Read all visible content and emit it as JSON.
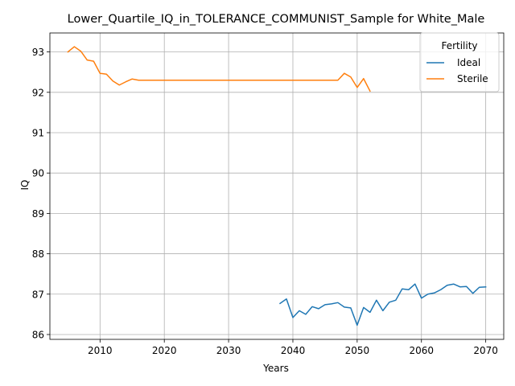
{
  "chart_data": {
    "type": "line",
    "title": "Lower_Quartile_IQ_in_TOLERANCE_COMMUNIST_Sample for White_Male",
    "xlabel": "Years",
    "ylabel": "IQ",
    "xlim": [
      2002.2,
      2072.8
    ],
    "ylim": [
      85.88,
      93.47
    ],
    "xticks": [
      2010,
      2020,
      2030,
      2040,
      2050,
      2060,
      2070
    ],
    "yticks": [
      86,
      87,
      88,
      89,
      90,
      91,
      92,
      93
    ],
    "grid": true,
    "legend": {
      "title": "Fertility",
      "position": "top-right"
    },
    "series": [
      {
        "name": "Ideal",
        "color": "#1f77b4",
        "x": [
          2038,
          2039,
          2040,
          2041,
          2042,
          2043,
          2044,
          2045,
          2046,
          2047,
          2048,
          2049,
          2050,
          2051,
          2052,
          2053,
          2054,
          2055,
          2056,
          2057,
          2058,
          2059,
          2060,
          2061,
          2062,
          2063,
          2064,
          2065,
          2066,
          2067,
          2068,
          2069,
          2070
        ],
        "y": [
          86.77,
          86.88,
          86.42,
          86.59,
          86.5,
          86.69,
          86.64,
          86.74,
          86.76,
          86.79,
          86.68,
          86.66,
          86.23,
          86.67,
          86.55,
          86.85,
          86.59,
          86.8,
          86.85,
          87.13,
          87.11,
          87.25,
          86.9,
          87.0,
          87.03,
          87.11,
          87.22,
          87.25,
          87.18,
          87.19,
          87.02,
          87.17,
          87.18
        ]
      },
      {
        "name": "Sterile",
        "color": "#ff7f0e",
        "x": [
          2005,
          2006,
          2007,
          2008,
          2009,
          2010,
          2011,
          2012,
          2013,
          2014,
          2015,
          2016,
          2017,
          2018,
          2019,
          2020,
          2021,
          2022,
          2023,
          2024,
          2025,
          2026,
          2027,
          2028,
          2029,
          2030,
          2031,
          2032,
          2033,
          2034,
          2035,
          2036,
          2037,
          2038,
          2039,
          2040,
          2041,
          2042,
          2043,
          2044,
          2045,
          2046,
          2047,
          2048,
          2049,
          2050,
          2051,
          2052
        ],
        "y": [
          93.0,
          93.13,
          93.02,
          92.8,
          92.77,
          92.47,
          92.45,
          92.28,
          92.18,
          92.26,
          92.33,
          92.3,
          92.3,
          92.3,
          92.3,
          92.3,
          92.3,
          92.3,
          92.3,
          92.3,
          92.3,
          92.3,
          92.3,
          92.3,
          92.3,
          92.3,
          92.3,
          92.3,
          92.3,
          92.3,
          92.3,
          92.3,
          92.3,
          92.3,
          92.3,
          92.3,
          92.3,
          92.3,
          92.3,
          92.3,
          92.3,
          92.3,
          92.3,
          92.47,
          92.38,
          92.12,
          92.34,
          92.03
        ]
      }
    ]
  }
}
